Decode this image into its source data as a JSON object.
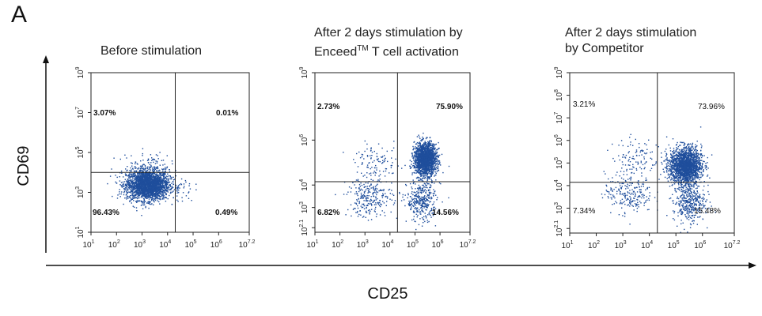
{
  "figure": {
    "panel_letter": "A",
    "y_axis_label": "CD69",
    "x_axis_label": "CD25"
  },
  "panels": [
    {
      "title_lines": [
        "Before stimulation"
      ],
      "quadrants": {
        "ul": "3.07%",
        "ur": "0.01%",
        "ll": "96.43%",
        "lr": "0.49%"
      }
    },
    {
      "title_lines": [
        "After 2 days stimulation by",
        "Enceed",
        "TM",
        " T cell activation"
      ],
      "quadrants": {
        "ul": "2.73%",
        "ur": "75.90%",
        "ll": "6.82%",
        "lr": "14.56%"
      }
    },
    {
      "title_lines": [
        "After 2 days stimulation",
        "by Competitor"
      ],
      "quadrants": {
        "ul": "3.21%",
        "ur": "73.96%",
        "ll": "7.34%",
        "lr": "15.48%"
      }
    }
  ],
  "colors": {
    "dots": "#1f4e9c",
    "axis": "#222222",
    "text": "#111111"
  },
  "chart_data": [
    {
      "type": "scatter",
      "title": "Before stimulation",
      "xlabel": "CD25",
      "ylabel": "CD69",
      "x_scale": "log",
      "y_scale": "log",
      "xlim": [
        10,
        15849000
      ],
      "ylim": [
        10,
        1000000000
      ],
      "x_ticks": [
        {
          "base": "10",
          "exp": "1"
        },
        {
          "base": "10",
          "exp": "2"
        },
        {
          "base": "10",
          "exp": "3"
        },
        {
          "base": "10",
          "exp": "4"
        },
        {
          "base": "10",
          "exp": "5"
        },
        {
          "base": "10",
          "exp": "6"
        },
        {
          "base": "10",
          "exp": "7.2"
        }
      ],
      "y_ticks": [
        {
          "base": "10",
          "exp": "1"
        },
        {
          "base": "10",
          "exp": "3"
        },
        {
          "base": "10",
          "exp": "5"
        },
        {
          "base": "10",
          "exp": "7"
        },
        {
          "base": "10",
          "exp": "9"
        }
      ],
      "gates": {
        "x": 20000,
        "y": 10000
      },
      "populations": [
        {
          "cx": 1600,
          "cy": 2500,
          "sx": 0.42,
          "sy": 0.38,
          "fraction": 0.96
        },
        {
          "cx": 1600,
          "cy": 30000,
          "sx": 0.45,
          "sy": 0.3,
          "fraction": 0.03
        },
        {
          "cx": 40000,
          "cy": 1500,
          "sx": 0.2,
          "sy": 0.3,
          "fraction": 0.01
        }
      ],
      "quadrant_percent": {
        "upper_left": "3.07%",
        "upper_right": "0.01%",
        "lower_left": "96.43%",
        "lower_right": "0.49%"
      }
    },
    {
      "type": "scatter",
      "title": "After 2 days stimulation by EnceedTM T cell activation",
      "xlabel": "CD25",
      "ylabel": "CD69",
      "x_scale": "log",
      "y_scale": "log",
      "xlim": [
        10,
        15849000
      ],
      "ylim": [
        79,
        1000000000
      ],
      "x_ticks": [
        {
          "base": "10",
          "exp": "1"
        },
        {
          "base": "10",
          "exp": "2"
        },
        {
          "base": "10",
          "exp": "3"
        },
        {
          "base": "10",
          "exp": "4"
        },
        {
          "base": "10",
          "exp": "5"
        },
        {
          "base": "10",
          "exp": "6"
        },
        {
          "base": "10",
          "exp": "7.2"
        }
      ],
      "y_ticks": [
        {
          "base": "10",
          "exp": "2.1"
        },
        {
          "base": "10",
          "exp": "3"
        },
        {
          "base": "10",
          "exp": "4"
        },
        {
          "base": "10",
          "exp": "6"
        },
        {
          "base": "10",
          "exp": "9"
        }
      ],
      "gates": {
        "x": 20000,
        "y": 14000
      },
      "populations": [
        {
          "cx": 250000,
          "cy": 150000,
          "sx": 0.22,
          "sy": 0.35,
          "fraction": 0.72
        },
        {
          "cx": 180000,
          "cy": 2000,
          "sx": 0.3,
          "sy": 0.45,
          "fraction": 0.14
        },
        {
          "cx": 1500,
          "cy": 3000,
          "sx": 0.45,
          "sy": 0.45,
          "fraction": 0.1
        },
        {
          "cx": 3000,
          "cy": 100000,
          "sx": 0.45,
          "sy": 0.4,
          "fraction": 0.04
        }
      ],
      "quadrant_percent": {
        "upper_left": "2.73%",
        "upper_right": "75.90%",
        "lower_left": "6.82%",
        "lower_right": "14.56%"
      }
    },
    {
      "type": "scatter",
      "title": "After 2 days stimulation by Competitor",
      "xlabel": "CD25",
      "ylabel": "CD69",
      "x_scale": "log",
      "y_scale": "log",
      "xlim": [
        10,
        15849000
      ],
      "ylim": [
        79,
        1000000000
      ],
      "x_ticks": [
        {
          "base": "10",
          "exp": "1"
        },
        {
          "base": "10",
          "exp": "2"
        },
        {
          "base": "10",
          "exp": "3"
        },
        {
          "base": "10",
          "exp": "4"
        },
        {
          "base": "10",
          "exp": "5"
        },
        {
          "base": "10",
          "exp": "6"
        },
        {
          "base": "10",
          "exp": "7.2"
        }
      ],
      "y_ticks": [
        {
          "base": "10",
          "exp": "2.1"
        },
        {
          "base": "10",
          "exp": "3"
        },
        {
          "base": "10",
          "exp": "4"
        },
        {
          "base": "10",
          "exp": "5"
        },
        {
          "base": "10",
          "exp": "6"
        },
        {
          "base": "10",
          "exp": "7"
        },
        {
          "base": "10",
          "exp": "8"
        },
        {
          "base": "10",
          "exp": "9"
        }
      ],
      "gates": {
        "x": 20000,
        "y": 14000
      },
      "populations": [
        {
          "cx": 220000,
          "cy": 80000,
          "sx": 0.3,
          "sy": 0.4,
          "fraction": 0.72
        },
        {
          "cx": 300000,
          "cy": 2000,
          "sx": 0.3,
          "sy": 0.45,
          "fraction": 0.15
        },
        {
          "cx": 1600,
          "cy": 5000,
          "sx": 0.45,
          "sy": 0.45,
          "fraction": 0.09
        },
        {
          "cx": 3000,
          "cy": 200000,
          "sx": 0.45,
          "sy": 0.4,
          "fraction": 0.04
        }
      ],
      "quadrant_percent": {
        "upper_left": "3.21%",
        "upper_right": "73.96%",
        "lower_left": "7.34%",
        "lower_right": "15.48%"
      }
    }
  ]
}
